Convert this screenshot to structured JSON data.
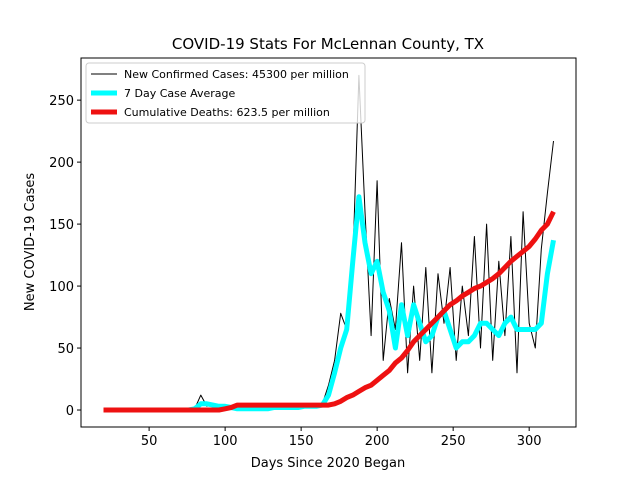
{
  "chart_data": {
    "type": "line",
    "title": "COVID-19 Stats For McLennan County, TX",
    "x_label": "Days Since 2020 Began",
    "y_label": "New COVID-19 Cases",
    "x": [
      20,
      24,
      28,
      32,
      36,
      40,
      44,
      48,
      52,
      56,
      60,
      64,
      68,
      72,
      76,
      80,
      84,
      88,
      92,
      96,
      100,
      104,
      108,
      112,
      116,
      120,
      124,
      128,
      132,
      136,
      140,
      144,
      148,
      152,
      156,
      160,
      164,
      168,
      172,
      176,
      180,
      184,
      188,
      192,
      196,
      200,
      204,
      208,
      212,
      216,
      220,
      224,
      228,
      232,
      236,
      240,
      244,
      248,
      252,
      256,
      260,
      264,
      268,
      272,
      276,
      280,
      284,
      288,
      292,
      296,
      300,
      304,
      308,
      312,
      316
    ],
    "series": [
      {
        "name": "New Confirmed Cases: 45300 per million",
        "color": "#000000",
        "width": 1,
        "values": [
          0,
          0,
          0,
          0,
          0,
          0,
          0,
          0,
          0,
          0,
          0,
          0,
          0,
          0,
          0,
          1,
          12,
          3,
          5,
          2,
          4,
          3,
          2,
          0,
          1,
          3,
          2,
          1,
          4,
          2,
          3,
          1,
          2,
          3,
          4,
          2,
          5,
          20,
          40,
          78,
          65,
          120,
          270,
          160,
          60,
          185,
          40,
          90,
          65,
          135,
          30,
          100,
          40,
          115,
          30,
          110,
          70,
          115,
          40,
          100,
          60,
          140,
          50,
          150,
          40,
          120,
          60,
          140,
          30,
          160,
          70,
          50,
          130,
          175,
          217
        ]
      },
      {
        "name": "7 Day Case Average",
        "color": "#00ffff",
        "width": 5,
        "values": [
          0,
          0,
          0,
          0,
          0,
          0,
          0,
          0,
          0,
          0,
          0,
          0,
          0,
          0,
          0,
          1,
          5,
          5,
          4,
          3,
          3,
          2,
          1,
          1,
          1,
          1,
          1,
          1,
          2,
          2,
          2,
          2,
          2,
          3,
          3,
          3,
          4,
          12,
          30,
          50,
          65,
          120,
          172,
          135,
          110,
          120,
          95,
          80,
          50,
          85,
          60,
          85,
          70,
          55,
          60,
          75,
          80,
          65,
          50,
          55,
          55,
          60,
          70,
          70,
          65,
          60,
          70,
          75,
          65,
          65,
          65,
          65,
          70,
          110,
          137
        ]
      },
      {
        "name": "Cumulative Deaths: 623.5 per million",
        "color": "#ee1111",
        "width": 5,
        "values": [
          0,
          0,
          0,
          0,
          0,
          0,
          0,
          0,
          0,
          0,
          0,
          0,
          0,
          0,
          0,
          0,
          0,
          0,
          0,
          0,
          1,
          2,
          4,
          4,
          4,
          4,
          4,
          4,
          4,
          4,
          4,
          4,
          4,
          4,
          4,
          4,
          4,
          4,
          5,
          7,
          10,
          12,
          15,
          18,
          20,
          24,
          28,
          32,
          38,
          42,
          48,
          55,
          60,
          65,
          70,
          75,
          80,
          85,
          88,
          92,
          95,
          98,
          100,
          103,
          106,
          110,
          115,
          120,
          124,
          128,
          132,
          138,
          145,
          150,
          160
        ]
      }
    ],
    "xlim": [
      5.2,
      330.8
    ],
    "ylim": [
      -13.7,
      284
    ],
    "xticks": [
      50,
      100,
      150,
      200,
      250,
      300
    ],
    "yticks": [
      0,
      50,
      100,
      150,
      200,
      250
    ],
    "legend": "upper left"
  }
}
